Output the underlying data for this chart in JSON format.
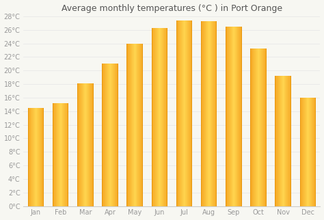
{
  "title": "Average monthly temperatures (°C ) in Port Orange",
  "months": [
    "Jan",
    "Feb",
    "Mar",
    "Apr",
    "May",
    "Jun",
    "Jul",
    "Aug",
    "Sep",
    "Oct",
    "Nov",
    "Dec"
  ],
  "values": [
    14.5,
    15.2,
    18.1,
    21.0,
    24.0,
    26.3,
    27.4,
    27.3,
    26.5,
    23.3,
    19.2,
    16.0
  ],
  "bar_color_center": "#FFD54F",
  "bar_color_edge": "#F5A623",
  "bar_color_left": "#F5A623",
  "background_color": "#f7f7f2",
  "plot_bg_color": "#f7f7f2",
  "grid_color": "#e8e8e8",
  "title_fontsize": 9,
  "tick_fontsize": 7,
  "tick_color": "#999999",
  "title_color": "#555555",
  "ylim": [
    0,
    28
  ],
  "ytick_step": 2,
  "bar_width": 0.65
}
